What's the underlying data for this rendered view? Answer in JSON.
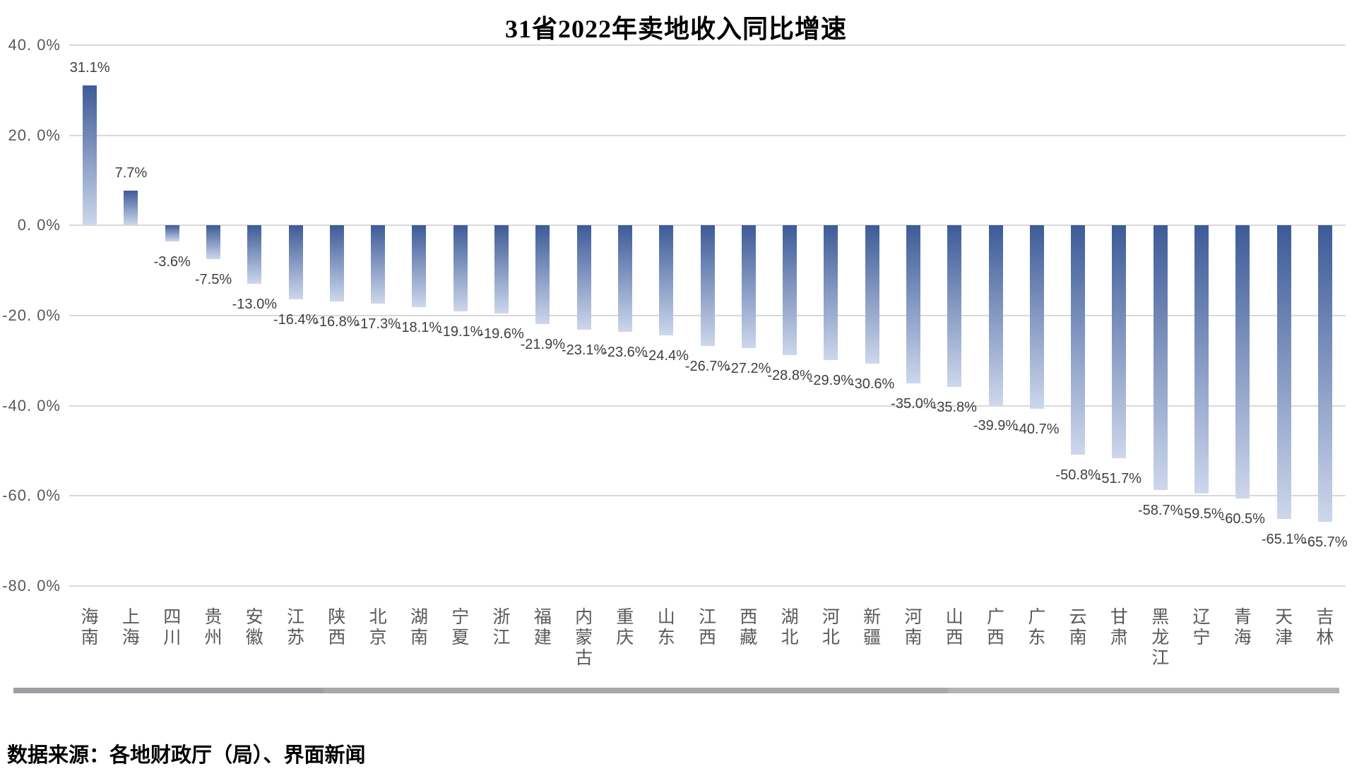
{
  "title": "31省2022年卖地收入同比增速",
  "source_note": "数据来源：各地财政厅（局）、界面新闻",
  "colors": {
    "bar_gradient_top": "#3d5b98",
    "bar_gradient_bottom": "#cdd7ec",
    "gridline": "#d9d9d9",
    "axis_text": "#595959",
    "data_label_text": "#3f3f3f",
    "scrollbar": "#a8a8ab"
  },
  "chart_data": {
    "type": "bar",
    "title": "31省2022年卖地收入同比增速",
    "categories": [
      "海南",
      "上海",
      "四川",
      "贵州",
      "安徽",
      "江苏",
      "陕西",
      "北京",
      "湖南",
      "宁夏",
      "浙江",
      "福建",
      "内蒙古",
      "重庆",
      "山东",
      "江西",
      "西藏",
      "湖北",
      "河北",
      "新疆",
      "河南",
      "山西",
      "广西",
      "广东",
      "云南",
      "甘肃",
      "黑龙江",
      "辽宁",
      "青海",
      "天津",
      "吉林"
    ],
    "values": [
      31.1,
      7.7,
      -3.6,
      -7.5,
      -13.0,
      -16.4,
      -16.8,
      -17.3,
      -18.1,
      -19.1,
      -19.6,
      -21.9,
      -23.1,
      -23.6,
      -24.4,
      -26.7,
      -27.2,
      -28.8,
      -29.9,
      -30.6,
      -35.0,
      -35.8,
      -39.9,
      -40.7,
      -50.8,
      -51.7,
      -58.7,
      -59.5,
      -60.5,
      -65.1,
      -65.7
    ],
    "data_labels": [
      "31.1%",
      "7.7%",
      "-3.6%",
      "-7.5%",
      "-13.0%",
      "-16.4%",
      "-16.8%",
      "-17.3%",
      "-18.1%",
      "-19.1%",
      "-19.6%",
      "-21.9%",
      "-23.1%",
      "-23.6%",
      "-24.4%",
      "-26.7%",
      "-27.2%",
      "-28.8%",
      "-29.9%",
      "-30.6%",
      "-35.0%",
      "-35.8%",
      "-39.9%",
      "-40.7%",
      "-50.8%",
      "-51.7%",
      "-58.7%",
      "-59.5%",
      "-60.5%",
      "-65.1%",
      "-65.7%"
    ],
    "xlabel": "",
    "ylabel": "",
    "ylim": [
      -80,
      40
    ],
    "ytick_step": 20,
    "ytick_labels": [
      "40. 0%",
      "20. 0%",
      "0. 0%",
      "-20. 0%",
      "-40. 0%",
      "-60. 0%",
      "-80. 0%"
    ],
    "ytick_values": [
      40,
      20,
      0,
      -20,
      -40,
      -60,
      -80
    ],
    "grid": true,
    "legend_position": "none"
  }
}
